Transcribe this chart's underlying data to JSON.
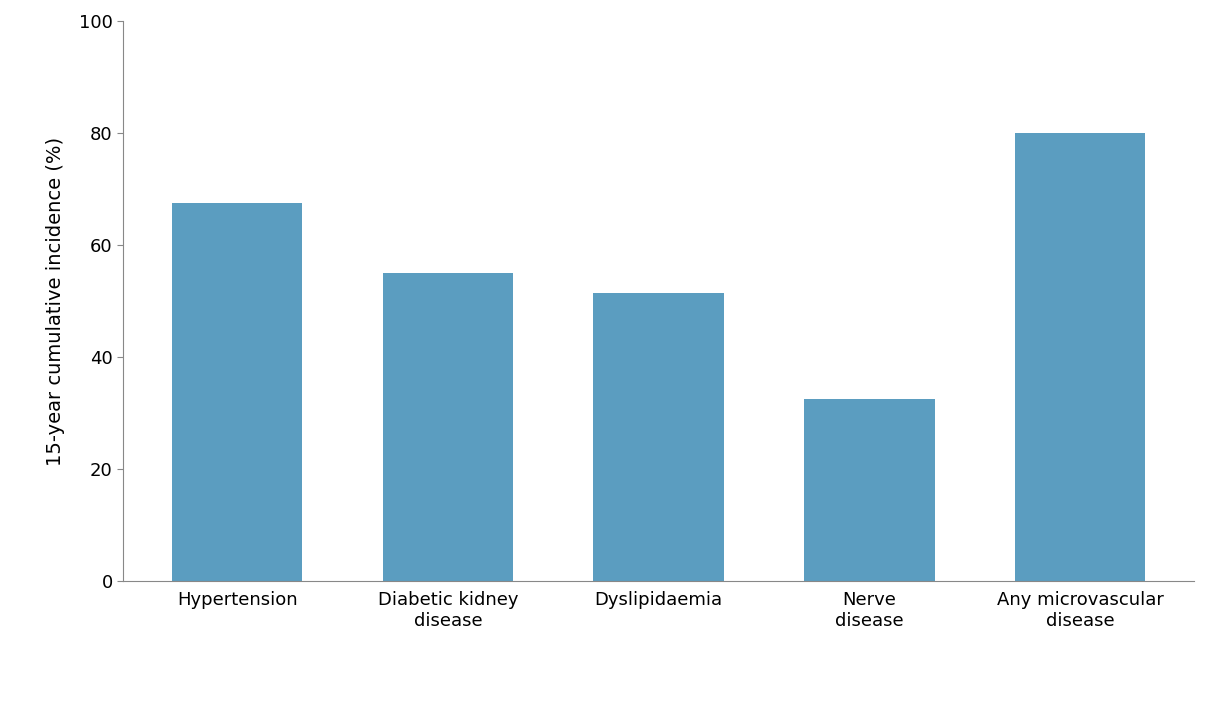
{
  "categories": [
    "Hypertension",
    "Diabetic kidney\ndisease",
    "Dyslipidaemia",
    "Nerve\ndisease",
    "Any microvascular\ndisease"
  ],
  "values": [
    67.5,
    55.0,
    51.5,
    32.5,
    80.0
  ],
  "bar_color": "#5b9dc0",
  "ylabel": "15-year cumulative incidence (%)",
  "ylim": [
    0,
    100
  ],
  "yticks": [
    0,
    20,
    40,
    60,
    80,
    100
  ],
  "background_color": "#ffffff",
  "bar_width": 0.62,
  "ylabel_fontsize": 14,
  "tick_fontsize": 13,
  "spine_color": "#888888"
}
